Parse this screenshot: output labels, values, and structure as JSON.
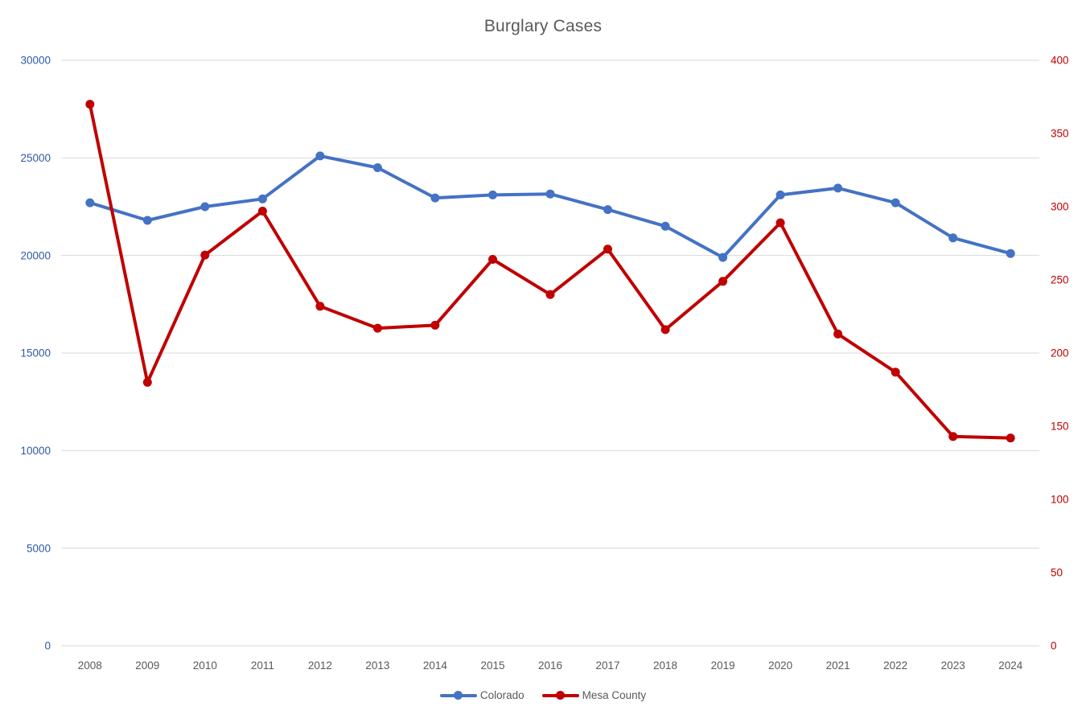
{
  "chart_data": {
    "type": "line",
    "title": "Burglary Cases",
    "title_color": "#595959",
    "xlabel_color": "#595959",
    "gridline_color": "#D9D9D9",
    "grid": true,
    "legend_position": "bottom",
    "legend_text_color": "#595959",
    "categories": [
      "2008",
      "2009",
      "2010",
      "2011",
      "2012",
      "2013",
      "2014",
      "2015",
      "2016",
      "2017",
      "2018",
      "2019",
      "2020",
      "2021",
      "2022",
      "2023",
      "2024"
    ],
    "series": [
      {
        "name": "Colorado",
        "axis": "left",
        "color": "#4472C4",
        "values": [
          22700,
          21800,
          22500,
          22900,
          25100,
          24500,
          22950,
          23100,
          23150,
          22350,
          21500,
          19900,
          23100,
          23450,
          22700,
          20900,
          20100
        ]
      },
      {
        "name": "Mesa County",
        "axis": "right",
        "color": "#C00000",
        "values": [
          370,
          180,
          267,
          297,
          232,
          217,
          219,
          264,
          240,
          271,
          216,
          249,
          289,
          213,
          187,
          143,
          142
        ]
      }
    ],
    "axes": {
      "left": {
        "min": 0,
        "max": 30000,
        "step": 5000,
        "label_color": "#2E5AA0"
      },
      "right": {
        "min": 0,
        "max": 400,
        "step": 50,
        "label_color": "#C00000"
      }
    }
  }
}
